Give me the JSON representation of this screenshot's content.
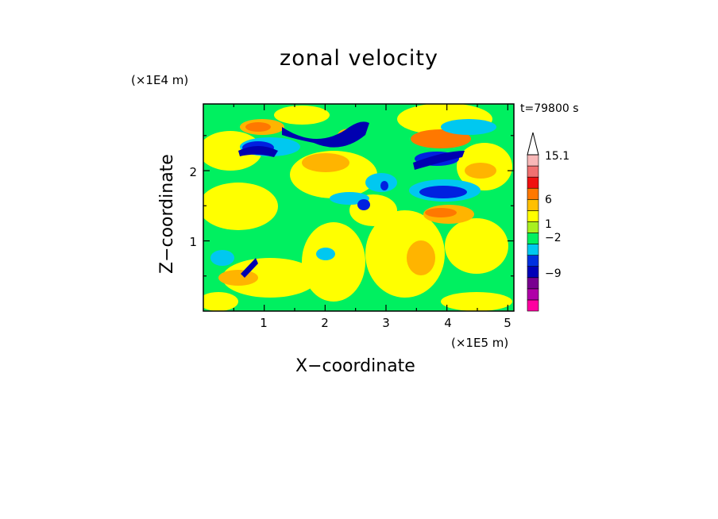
{
  "chart_data": {
    "type": "heatmap",
    "title": "zonal velocity",
    "xlabel": "X−coordinate",
    "ylabel": "Z−coordinate",
    "x_unit": "(×1E5 m)",
    "y_unit": "(×1E4 m)",
    "time_label": "t=79800 s",
    "xlim": [
      0,
      5.1
    ],
    "ylim": [
      0,
      2.95
    ],
    "x_ticks": [
      "1",
      "2",
      "3",
      "4",
      "5"
    ],
    "y_ticks": [
      "1",
      "2"
    ],
    "colorbar": {
      "labels": [
        "15.1",
        "6",
        "1",
        "−2",
        "−9"
      ],
      "levels": [
        {
          "color": "#ff00a0",
          "range": "< -12"
        },
        {
          "color": "#b000a8",
          "range": "-12 to -9"
        },
        {
          "color": "#780090",
          "range": "-9 to -6"
        },
        {
          "color": "#0000b8",
          "range": "-6 to -4"
        },
        {
          "color": "#0030e0",
          "range": "-4 to -2"
        },
        {
          "color": "#00c8f0",
          "range": "-2 to -1"
        },
        {
          "color": "#00f060",
          "range": "-1 to 0"
        },
        {
          "color": "#a8f020",
          "range": "0 to 1"
        },
        {
          "color": "#ffff00",
          "range": "1 to 2"
        },
        {
          "color": "#ffc000",
          "range": "2 to 4"
        },
        {
          "color": "#ff7800",
          "range": "4 to 6"
        },
        {
          "color": "#f01010",
          "range": "6 to 9"
        },
        {
          "color": "#f07070",
          "range": "9 to 12"
        },
        {
          "color": "#f8b8b8",
          "range": "12 to 15.1"
        }
      ],
      "extend_max": true
    },
    "field_colors": {
      "green": "#00f060",
      "yellow": "#ffff00",
      "orange": "#ffb400",
      "dark_orange": "#ff7800",
      "cyan": "#00c8f0",
      "blue": "#0020e0",
      "navy": "#0000b0"
    }
  }
}
